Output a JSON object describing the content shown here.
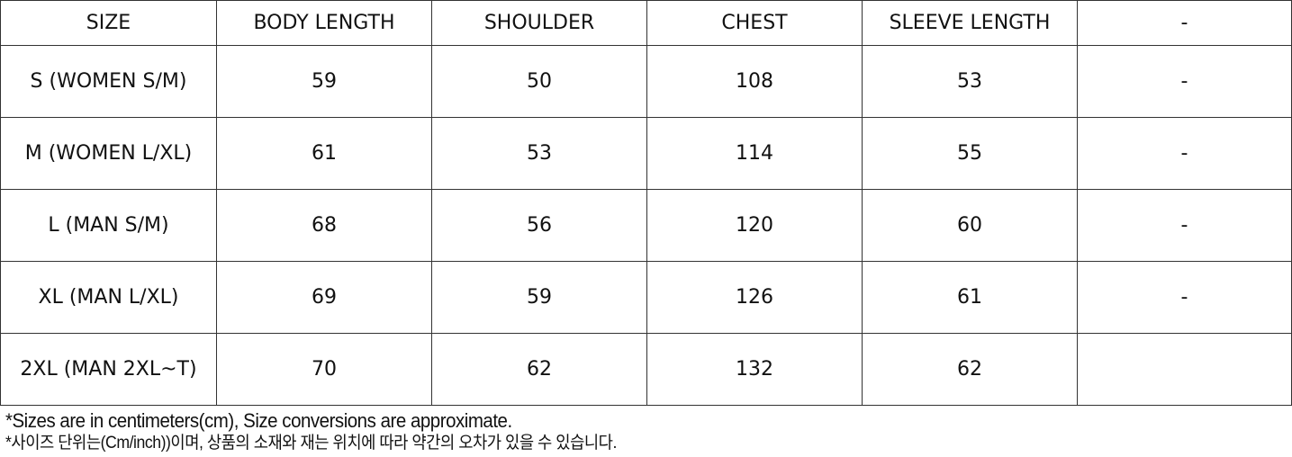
{
  "table": {
    "headers": [
      "SIZE",
      "BODY LENGTH",
      "SHOULDER",
      "CHEST",
      "SLEEVE LENGTH",
      "-"
    ],
    "rows": [
      [
        "S (WOMEN S/M)",
        "59",
        "50",
        "108",
        "53",
        "-"
      ],
      [
        "M  (WOMEN L/XL)",
        "61",
        "53",
        "114",
        "55",
        "-"
      ],
      [
        "L (MAN S/M)",
        "68",
        "56",
        "120",
        "60",
        "-"
      ],
      [
        "XL (MAN L/XL)",
        "69",
        "59",
        "126",
        "61",
        "-"
      ],
      [
        "2XL (MAN 2XL~T)",
        "70",
        "62",
        "132",
        "62",
        ""
      ]
    ]
  },
  "notes": [
    "*Sizes are in centimeters(cm), Size conversions are approximate.",
    "*사이즈 단위는(Cm/inch))이며, 상품의 소재와 재는 위치에 따라 약간의 오차가 있을 수 있습니다."
  ]
}
